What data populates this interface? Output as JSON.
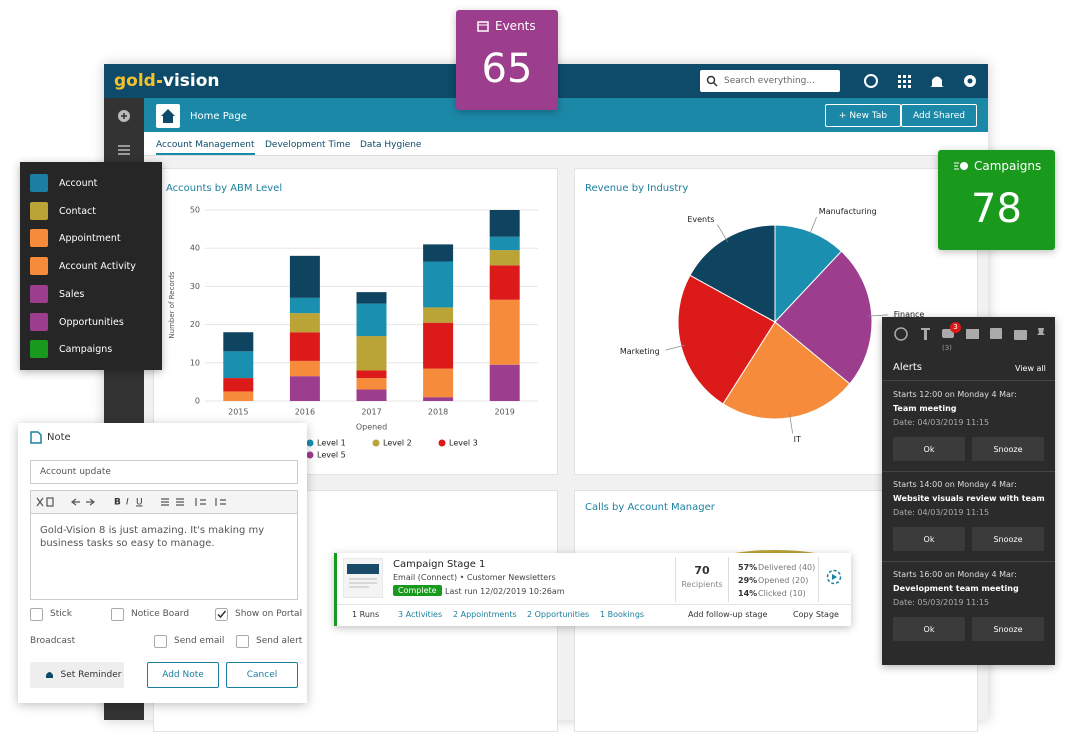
{
  "header": {
    "logo_gold": "gold",
    "logo_vision": "vision",
    "search_placeholder": "Search everything..."
  },
  "tab_bar": {
    "title": "Home Page",
    "new_tab": "+ New Tab",
    "add_shared": "Add Shared"
  },
  "sub_tabs": [
    "Account Management",
    "Development Time",
    "Data Hygiene"
  ],
  "widgets": {
    "events": {
      "label": "Events",
      "value": 65
    },
    "campaigns": {
      "label": "Campaigns",
      "value": 78
    }
  },
  "nav_menu": [
    "Account",
    "Contact",
    "Appointment",
    "Account Activity",
    "Sales",
    "Opportunities",
    "Campaigns"
  ],
  "charts": {
    "abm": {
      "type": "bar",
      "stacked": true,
      "title": "Accounts by ABM Level",
      "categories": [
        "2015",
        "2016",
        "2017",
        "2018",
        "2019"
      ],
      "series": [
        {
          "color": "#0f4460",
          "values": [
            5,
            11,
            3,
            4.5,
            7
          ]
        },
        {
          "name": "Level 1",
          "color": "#1a8fb0",
          "values": [
            7,
            4,
            8.5,
            12,
            3.5
          ]
        },
        {
          "name": "Level 2",
          "color": "#bba436",
          "values": [
            0,
            5,
            9,
            4,
            4
          ]
        },
        {
          "name": "Level 3",
          "color": "#dd1a1a",
          "values": [
            3.5,
            7.5,
            2,
            12,
            9
          ]
        },
        {
          "color": "#f78b3c",
          "values": [
            2.5,
            4,
            3,
            7.5,
            17
          ]
        },
        {
          "name": "Level 5",
          "color": "#9c3d8d",
          "values": [
            0,
            6.5,
            3,
            1,
            9.5
          ]
        }
      ],
      "ylim": [
        0,
        50
      ],
      "yticks": [
        0,
        10,
        20,
        30,
        40,
        50
      ],
      "ylabel": "Number of Records",
      "xlabel": "Opened",
      "grid": true
    },
    "revenue": {
      "type": "pie",
      "title": "Revenue by Industry",
      "categories": [
        "Manufacturing",
        "Finance",
        "IT",
        "Marketing",
        "Events"
      ],
      "values": [
        12,
        24,
        23,
        24,
        17
      ],
      "colors": [
        "#1a8fb0",
        "#9c3d8d",
        "#f78b3c",
        "#dd1a1a",
        "#0f4460"
      ]
    }
  },
  "calls_panel": {
    "title": "Calls by Account Manager"
  },
  "note": {
    "title": "Note",
    "subject": "Account update",
    "body": "Gold-Vision 8 is just amazing. It's making my business tasks so easy to manage.",
    "stick": "Stick",
    "notice_board": "Notice Board",
    "show_on_portal": "Show on Portal",
    "broadcast": "Broadcast",
    "send_email": "Send email",
    "send_alert": "Send alert",
    "set_reminder": "Set Reminder",
    "add_note": "Add Note",
    "cancel": "Cancel"
  },
  "campaign_card": {
    "title": "Campaign Stage 1",
    "subtitle": "Email (Connect) • Customer Newsletters",
    "status": "Complete",
    "last_run": "Last run 12/02/2019 10:26am",
    "recipients": 70,
    "recipients_label": "Recipients",
    "stats": [
      {
        "pct": "57%",
        "label": "Delivered (40)"
      },
      {
        "pct": "29%",
        "label": "Opened (20)"
      },
      {
        "pct": "14%",
        "label": "Clicked (10)"
      }
    ],
    "footer": [
      "1 Runs",
      "3 Activities",
      "2 Appointments",
      "2 Opportunities",
      "1 Bookings",
      "Add follow-up stage",
      "Copy Stage"
    ]
  },
  "alerts": {
    "badge": 3,
    "badge_label": "(3)",
    "title": "Alerts",
    "view_all": "View all",
    "ok": "Ok",
    "snooze": "Snooze",
    "items": [
      {
        "start": "Starts 12:00 on Monday 4 Mar:",
        "title": "Team meeting",
        "date": "Date: 04/03/2019 11:15"
      },
      {
        "start": "Starts 14:00 on Monday 4 Mar:",
        "title": "Website visuals review with team",
        "date": "Date: 04/03/2019 11:15"
      },
      {
        "start": "Starts 16:00 on Monday 4 Mar:",
        "title": "Development team meeting",
        "date": "Date: 05/03/2019 11:15"
      }
    ]
  }
}
